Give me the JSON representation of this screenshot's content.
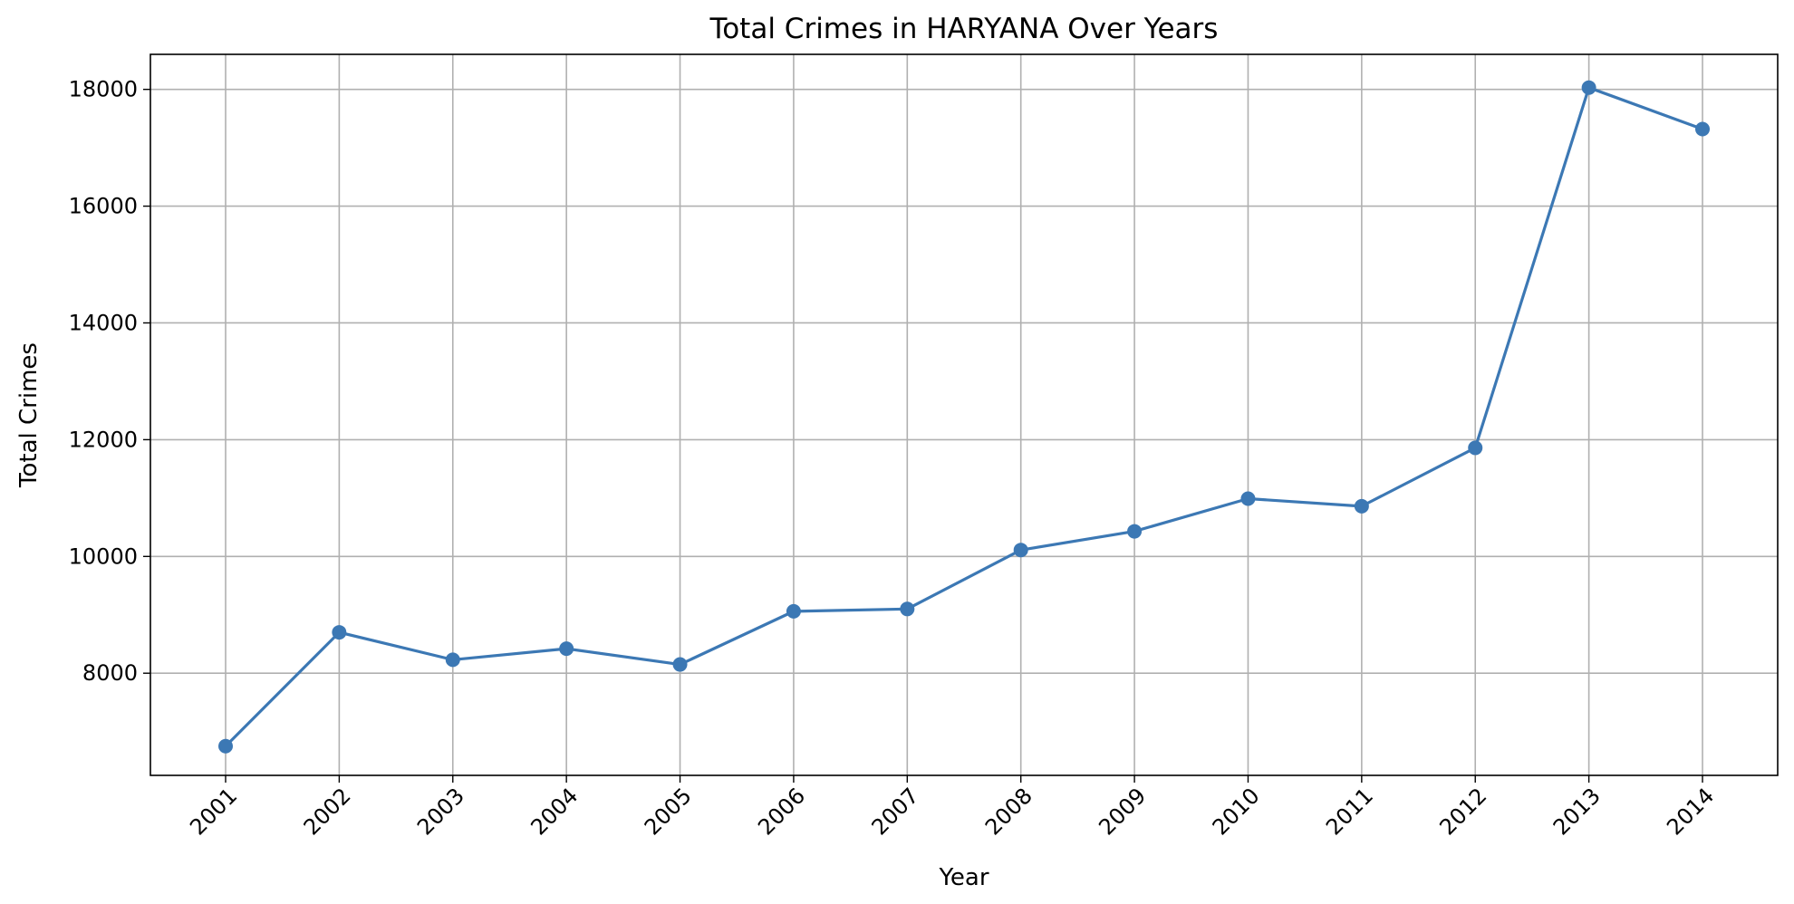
{
  "chart_data": {
    "type": "line",
    "title": "Total Crimes in HARYANA Over Years",
    "xlabel": "Year",
    "ylabel": "Total Crimes",
    "categories": [
      "2001",
      "2002",
      "2003",
      "2004",
      "2005",
      "2006",
      "2007",
      "2008",
      "2009",
      "2010",
      "2011",
      "2012",
      "2013",
      "2014"
    ],
    "series": [
      {
        "values": [
          6750,
          8700,
          8230,
          8420,
          8150,
          9060,
          9100,
          10110,
          10430,
          10990,
          10860,
          11860,
          18030,
          17320
        ]
      }
    ],
    "ylim": [
      6250,
      18600
    ],
    "yticks": [
      8000,
      10000,
      12000,
      14000,
      16000,
      18000
    ],
    "grid": true,
    "legend": "none",
    "colors": {
      "line": "#3c78b4",
      "grid": "#b0b0b0",
      "axis": "#000000"
    },
    "marker": "circle"
  }
}
